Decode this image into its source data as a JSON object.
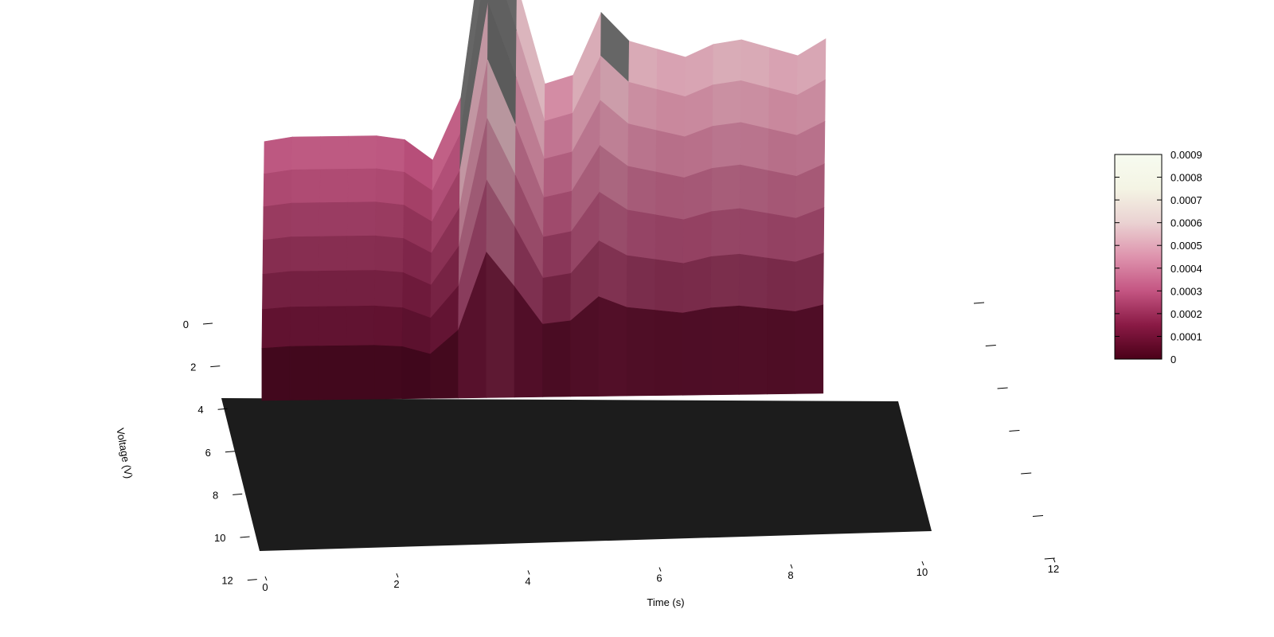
{
  "chart_data": {
    "type": "surface3d",
    "xlabel": "Time (s)",
    "ylabel": "Voltage (V)",
    "x_ticks": [
      "0",
      "2",
      "4",
      "6",
      "8",
      "10",
      "12"
    ],
    "y_ticks": [
      "0",
      "2",
      "4",
      "6",
      "8",
      "10",
      "12"
    ],
    "xlim": [
      0,
      12
    ],
    "ylim": [
      0,
      12
    ],
    "colorbar": {
      "ticks": [
        "0",
        "0.0001",
        "0.0002",
        "0.0003",
        "0.0004",
        "0.0005",
        "0.0006",
        "0.0007",
        "0.0008",
        "0.0009"
      ],
      "range": [
        0,
        0.0009
      ],
      "colors": [
        "#4a0018",
        "#8a1a45",
        "#c45582",
        "#de93ad",
        "#ead2d2",
        "#f4f4e4",
        "#f7fbf0"
      ]
    },
    "surface_profile": {
      "x": [
        0,
        0.5,
        1,
        1.5,
        2,
        2.5,
        3,
        3.5,
        4,
        4.5,
        5,
        5.5,
        6,
        6.5,
        7,
        7.5,
        8,
        8.5,
        9,
        9.5,
        10
      ],
      "peak_height": [
        0.00033,
        0.00034,
        0.00034,
        0.00034,
        0.00034,
        0.00033,
        0.00028,
        0.00043,
        0.00092,
        0.0007,
        0.00046,
        0.00048,
        0.00063,
        0.00056,
        0.00054,
        0.00052,
        0.00055,
        0.00056,
        0.00054,
        0.00052,
        0.00056
      ]
    },
    "floor_color": "#1c1c1c",
    "saturated_color": "#6b6b6b"
  }
}
